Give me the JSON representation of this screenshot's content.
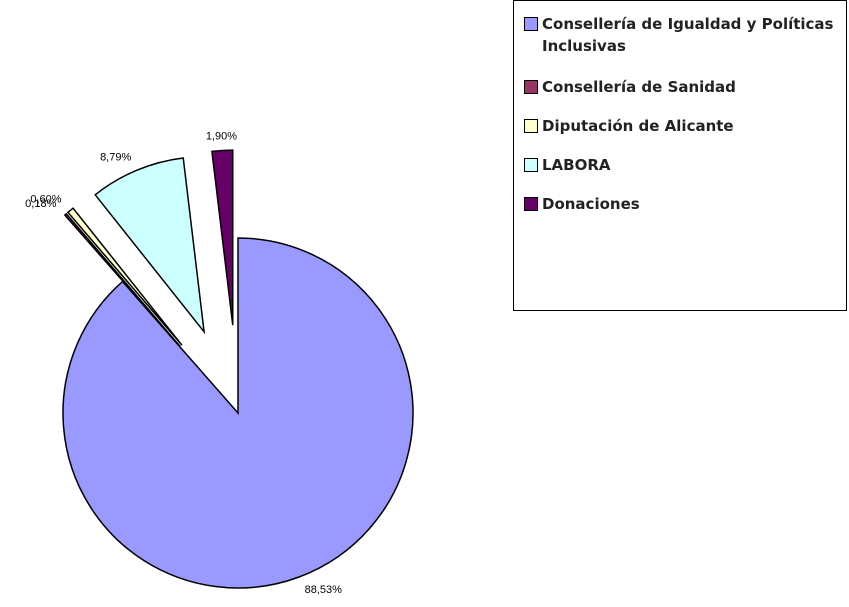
{
  "chart_data": {
    "type": "pie",
    "categories": [
      "Consellería de Igualdad y Políticas Inclusivas",
      "Consellería de Sanidad",
      "Diputación de Alicante",
      "LABORA",
      "Donaciones"
    ],
    "values": [
      88.53,
      0.18,
      0.6,
      8.79,
      1.9
    ],
    "value_labels": [
      "88,53%",
      "0,18%",
      "0,60%",
      "8,79%",
      "1,90%"
    ],
    "colors": [
      "#9999ff",
      "#993366",
      "#ffffcc",
      "#ccffff",
      "#660066"
    ],
    "legend": "right"
  }
}
